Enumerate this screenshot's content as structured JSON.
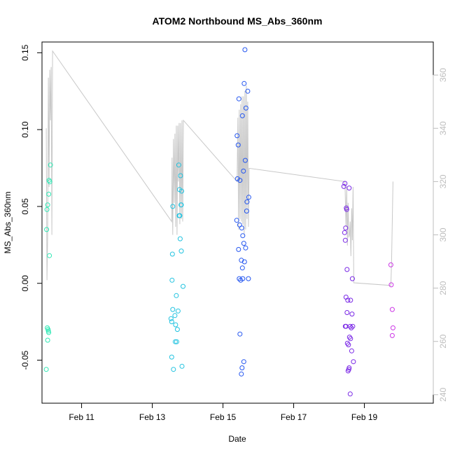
{
  "chart_data": {
    "type": "scatter",
    "title": "ATOM2 Northbound MS_Abs_360nm",
    "xlabel": "Date",
    "ylabel": "MS_Abs_360nm",
    "x_unit": "days of February",
    "xlim": [
      9.88,
      20.95
    ],
    "ylim": [
      -0.078,
      0.157
    ],
    "y2lim": [
      236.8,
      372.4
    ],
    "x_ticks": [
      11,
      13,
      15,
      17,
      19
    ],
    "x_tick_labels": [
      "Feb 11",
      "Feb 13",
      "Feb 15",
      "Feb 17",
      "Feb 19"
    ],
    "y_ticks": [
      -0.05,
      0.0,
      0.05,
      0.1,
      0.15
    ],
    "y_tick_labels": [
      "-0.05",
      "0.00",
      "0.05",
      "0.10",
      "0.15"
    ],
    "y2_ticks": [
      240,
      260,
      280,
      300,
      320,
      340,
      360
    ],
    "y2_tick_labels": [
      "240",
      "260",
      "280",
      "300",
      "320",
      "340",
      "360"
    ],
    "grid": false,
    "legend": "none",
    "line_color": "#c8c8c8",
    "series": [
      {
        "color": "#2ee8b4",
        "points": [
          [
            10.12,
            0.077
          ],
          [
            10.08,
            0.067
          ],
          [
            10.1,
            0.066
          ],
          [
            10.07,
            0.058
          ],
          [
            10.04,
            0.051
          ],
          [
            10.02,
            0.048
          ],
          [
            10.01,
            0.035
          ],
          [
            10.09,
            0.018
          ],
          [
            10.03,
            -0.029
          ],
          [
            10.05,
            -0.03
          ],
          [
            10.06,
            -0.031
          ],
          [
            10.07,
            -0.032
          ],
          [
            10.04,
            -0.037
          ],
          [
            10.0,
            -0.056
          ]
        ]
      },
      {
        "color": "#22c3e0",
        "points": [
          [
            13.75,
            0.077
          ],
          [
            13.8,
            0.07
          ],
          [
            13.77,
            0.061
          ],
          [
            13.83,
            0.06
          ],
          [
            13.82,
            0.051
          ],
          [
            13.81,
            0.051
          ],
          [
            13.58,
            0.05
          ],
          [
            13.76,
            0.044
          ],
          [
            13.78,
            0.044
          ],
          [
            13.79,
            0.029
          ],
          [
            13.82,
            0.021
          ],
          [
            13.57,
            0.019
          ],
          [
            13.56,
            0.002
          ],
          [
            13.87,
            -0.002
          ],
          [
            13.68,
            -0.008
          ],
          [
            13.58,
            -0.017
          ],
          [
            13.73,
            -0.018
          ],
          [
            13.64,
            -0.021
          ],
          [
            13.53,
            -0.023
          ],
          [
            13.55,
            -0.025
          ],
          [
            13.66,
            -0.027
          ],
          [
            13.71,
            -0.03
          ],
          [
            13.65,
            -0.038
          ],
          [
            13.69,
            -0.038
          ],
          [
            13.55,
            -0.048
          ],
          [
            13.84,
            -0.054
          ],
          [
            13.6,
            -0.056
          ]
        ]
      },
      {
        "color": "#2456f0",
        "points": [
          [
            15.62,
            0.152
          ],
          [
            15.6,
            0.13
          ],
          [
            15.7,
            0.125
          ],
          [
            15.45,
            0.12
          ],
          [
            15.65,
            0.114
          ],
          [
            15.55,
            0.109
          ],
          [
            15.4,
            0.096
          ],
          [
            15.43,
            0.09
          ],
          [
            15.63,
            0.08
          ],
          [
            15.58,
            0.073
          ],
          [
            15.41,
            0.068
          ],
          [
            15.48,
            0.067
          ],
          [
            15.73,
            0.056
          ],
          [
            15.68,
            0.053
          ],
          [
            15.67,
            0.047
          ],
          [
            15.39,
            0.041
          ],
          [
            15.47,
            0.038
          ],
          [
            15.53,
            0.036
          ],
          [
            15.56,
            0.031
          ],
          [
            15.59,
            0.026
          ],
          [
            15.64,
            0.023
          ],
          [
            15.44,
            0.022
          ],
          [
            15.52,
            0.015
          ],
          [
            15.61,
            0.014
          ],
          [
            15.55,
            0.01
          ],
          [
            15.46,
            0.003
          ],
          [
            15.72,
            0.003
          ],
          [
            15.56,
            0.003
          ],
          [
            15.5,
            0.002
          ],
          [
            15.48,
            -0.033
          ],
          [
            15.59,
            -0.051
          ],
          [
            15.54,
            -0.055
          ],
          [
            15.52,
            -0.059
          ]
        ]
      },
      {
        "color": "#7a28e6",
        "points": [
          [
            18.45,
            0.065
          ],
          [
            18.42,
            0.063
          ],
          [
            18.57,
            0.062
          ],
          [
            18.49,
            0.049
          ],
          [
            18.5,
            0.048
          ],
          [
            18.47,
            0.036
          ],
          [
            18.44,
            0.033
          ],
          [
            18.46,
            0.028
          ],
          [
            18.51,
            0.009
          ],
          [
            18.66,
            0.003
          ],
          [
            18.48,
            -0.009
          ],
          [
            18.53,
            -0.011
          ],
          [
            18.61,
            -0.011
          ],
          [
            18.51,
            -0.019
          ],
          [
            18.65,
            -0.02
          ],
          [
            18.46,
            -0.028
          ],
          [
            18.48,
            -0.028
          ],
          [
            18.6,
            -0.028
          ],
          [
            18.67,
            -0.028
          ],
          [
            18.63,
            -0.029
          ],
          [
            18.58,
            -0.035
          ],
          [
            18.61,
            -0.036
          ],
          [
            18.52,
            -0.039
          ],
          [
            18.55,
            -0.04
          ],
          [
            18.64,
            -0.044
          ],
          [
            18.69,
            -0.051
          ],
          [
            18.57,
            -0.055
          ],
          [
            18.56,
            -0.056
          ],
          [
            18.54,
            -0.057
          ],
          [
            18.6,
            -0.072
          ]
        ]
      },
      {
        "color": "#cc36e6",
        "points": [
          [
            19.75,
            0.012
          ],
          [
            19.76,
            -0.001
          ],
          [
            19.79,
            -0.017
          ],
          [
            19.81,
            -0.029
          ],
          [
            19.79,
            -0.034
          ]
        ]
      }
    ],
    "line_series": {
      "axis": "right",
      "x": [
        10.0,
        10.02,
        10.04,
        10.06,
        10.08,
        10.1,
        10.12,
        10.14,
        10.16,
        10.18,
        13.55,
        13.56,
        13.58,
        13.6,
        13.62,
        13.64,
        13.66,
        13.68,
        13.7,
        13.72,
        13.74,
        13.76,
        13.78,
        13.8,
        13.82,
        13.84,
        13.86,
        13.88,
        15.4,
        15.42,
        15.44,
        15.46,
        15.48,
        15.5,
        15.52,
        15.54,
        15.56,
        15.58,
        15.6,
        15.62,
        15.64,
        15.66,
        15.68,
        15.7,
        15.72,
        15.74,
        18.45,
        18.46,
        18.48,
        18.5,
        18.52,
        18.54,
        18.56,
        18.58,
        18.6,
        18.62,
        18.64,
        18.66,
        18.68,
        18.7,
        19.75,
        19.77,
        19.79,
        19.81
      ],
      "y": [
        340,
        283,
        300,
        359,
        318,
        362,
        343,
        363,
        300,
        369,
        305,
        329,
        300,
        336,
        312,
        338,
        303,
        341,
        300,
        341,
        320,
        342,
        304,
        342,
        306,
        343,
        305,
        343,
        320,
        344,
        302,
        347,
        306,
        349,
        305,
        352,
        304,
        352,
        300,
        354,
        302,
        356,
        306,
        350,
        303,
        325,
        320,
        314,
        303,
        318,
        296,
        312,
        299,
        300,
        305,
        292,
        310,
        298,
        318,
        282,
        281,
        290,
        305,
        320
      ]
    }
  }
}
